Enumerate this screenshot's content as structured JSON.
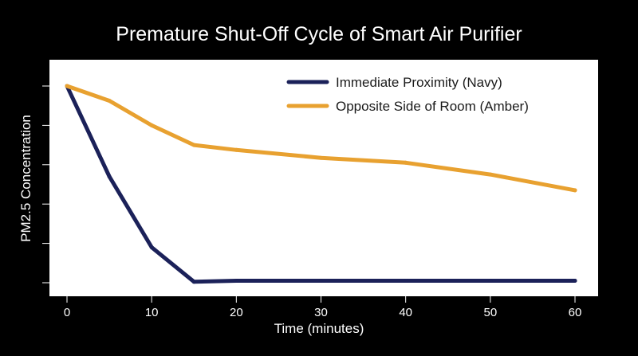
{
  "chart_data": {
    "type": "line",
    "title": "Premature Shut-Off Cycle of Smart Air Purifier",
    "xlabel": "Time (minutes)",
    "ylabel": "PM2.5 Concentration",
    "x_ticks": [
      0,
      10,
      20,
      30,
      40,
      50,
      60
    ],
    "xlim": [
      0,
      60
    ],
    "ylim": [
      0,
      100
    ],
    "y_ticks_labeled": false,
    "grid": false,
    "legend_position": "top-right",
    "series": [
      {
        "name": "Immediate Proximity (Navy)",
        "color": "#1b2159",
        "x": [
          0,
          5,
          10,
          15,
          20,
          30,
          40,
          50,
          60
        ],
        "y": [
          100,
          54,
          18,
          0.5,
          1,
          1,
          1,
          1,
          1
        ]
      },
      {
        "name": "Opposite Side of Room (Amber)",
        "color": "#e8a130",
        "x": [
          0,
          5,
          10,
          15,
          20,
          30,
          40,
          50,
          60
        ],
        "y": [
          100,
          92.5,
          80,
          70,
          67.5,
          63.5,
          61,
          55,
          47
        ]
      }
    ]
  }
}
